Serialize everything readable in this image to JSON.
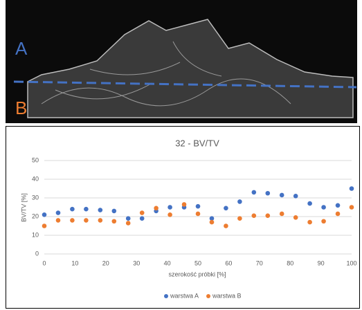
{
  "image": {
    "label_a": "A",
    "label_b": "B"
  },
  "chart_data": {
    "type": "scatter",
    "title": "32 - BV/TV",
    "x_label": "szerokość próbki [%]",
    "y_label": "BV/TV [%]",
    "xlim": [
      0,
      100
    ],
    "xticks": [
      0,
      10,
      20,
      30,
      40,
      50,
      60,
      70,
      80,
      90,
      100
    ],
    "ylim": [
      0,
      50
    ],
    "yticks": [
      0,
      10,
      20,
      30,
      40,
      50
    ],
    "grid": true,
    "legend": "bottom",
    "x": [
      0,
      4.5,
      9.1,
      13.6,
      18.2,
      22.7,
      27.3,
      31.8,
      36.4,
      40.9,
      45.5,
      50,
      54.5,
      59.1,
      63.6,
      68.2,
      72.7,
      77.3,
      81.8,
      86.4,
      90.9,
      95.5,
      100
    ],
    "series": [
      {
        "name": "warstwa A",
        "color": "#4472c4",
        "values": [
          21,
          22,
          24,
          24,
          23.5,
          23,
          19,
          19,
          23,
          25,
          25,
          25.5,
          19,
          24.5,
          28,
          33,
          32.5,
          31.5,
          31,
          27,
          25,
          26,
          35
        ]
      },
      {
        "name": "warstwa B",
        "color": "#ed7d31",
        "values": [
          15,
          18,
          18,
          18,
          18,
          17.5,
          16.5,
          22,
          24.5,
          21,
          26.5,
          21.5,
          17,
          15,
          19,
          20.5,
          20.5,
          21.5,
          19.5,
          17,
          17.5,
          21.5,
          25
        ]
      }
    ]
  }
}
